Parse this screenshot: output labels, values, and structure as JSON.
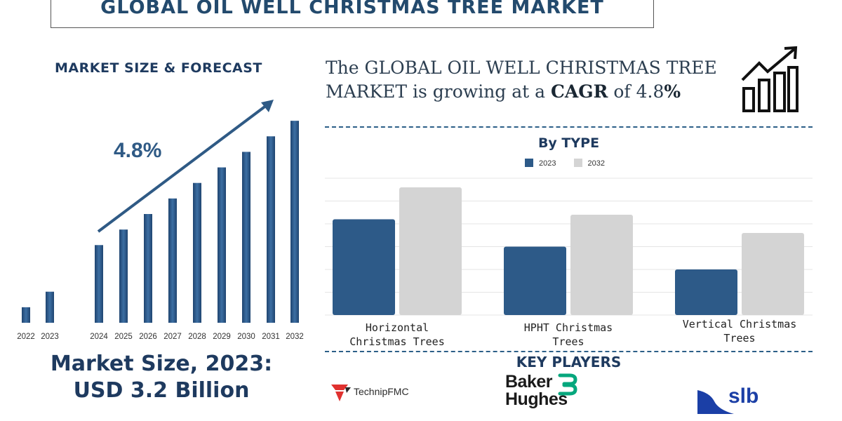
{
  "title": "GLOBAL OIL WELL CHRISTMAS TREE MARKET",
  "forecast": {
    "heading": "MARKET SIZE & FORECAST",
    "cagr_label": "4.8%"
  },
  "market_size": {
    "line1": "Market Size, 2023:",
    "line2": "USD 3.2 Billion"
  },
  "headline": {
    "prefix": "The GLOBAL OIL WELL CHRISTMAS TREE MARKET is growing at a ",
    "cagr_word": "CAGR",
    "middle": " of 4.8",
    "suffix": "%"
  },
  "icons": {
    "growth": "growth-chart-icon"
  },
  "type_section": {
    "heading": "By TYPE"
  },
  "key_players": {
    "heading": "KEY PLAYERS",
    "companies": [
      {
        "name": "TechnipFMC"
      },
      {
        "name_line1": "Baker",
        "name_line2": "Hughes"
      },
      {
        "name": "slb"
      }
    ]
  },
  "colors": {
    "primary": "#2d5a88",
    "secondary": "#d4d4d4",
    "heading": "#1e3a5f",
    "technip_red": "#e0312f",
    "baker_green": "#06a77d",
    "slb_blue": "#1b3fa6"
  },
  "chart_data": [
    {
      "type": "bar",
      "title": "MARKET SIZE & FORECAST",
      "categories": [
        "2022",
        "2023",
        "2024",
        "2025",
        "2026",
        "2027",
        "2028",
        "2029",
        "2030",
        "2031",
        "2032"
      ],
      "values": [
        1.0,
        2.0,
        5.0,
        6.0,
        7.0,
        8.0,
        9.0,
        10.0,
        11.0,
        12.0,
        13.0
      ],
      "ylim": [
        0,
        14
      ],
      "annotation": "4.8%",
      "grid": false
    },
    {
      "type": "bar",
      "title": "By TYPE",
      "categories": [
        "Horizontal Christmas Trees",
        "HPHT Christmas Trees",
        "Vertical Christmas Trees"
      ],
      "series": [
        {
          "name": "2023",
          "values": [
            4.2,
            3.0,
            2.0
          ]
        },
        {
          "name": "2032",
          "values": [
            5.6,
            4.4,
            3.6
          ]
        }
      ],
      "ylim": [
        0,
        6
      ],
      "legend": "top-center",
      "grid": true
    }
  ]
}
